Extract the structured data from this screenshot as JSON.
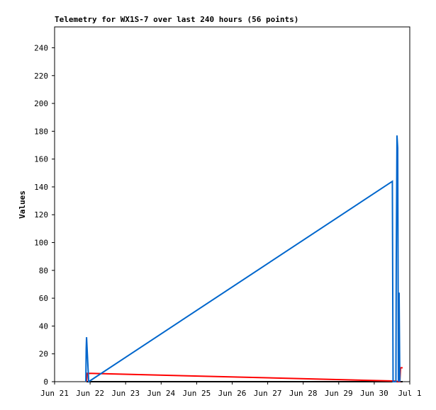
{
  "chart_data": {
    "type": "line",
    "title": "Telemetry for WX1S-7 over last 240 hours (56 points)",
    "y_label": "Values",
    "xlim": [
      0,
      10
    ],
    "ylim": [
      0,
      255
    ],
    "xticks": [
      {
        "value": 0,
        "label": "Jun 21"
      },
      {
        "value": 1,
        "label": "Jun 22"
      },
      {
        "value": 2,
        "label": "Jun 23"
      },
      {
        "value": 3,
        "label": "Jun 24"
      },
      {
        "value": 4,
        "label": "Jun 25"
      },
      {
        "value": 5,
        "label": "Jun 26"
      },
      {
        "value": 6,
        "label": "Jun 27"
      },
      {
        "value": 7,
        "label": "Jun 28"
      },
      {
        "value": 8,
        "label": "Jun 29"
      },
      {
        "value": 9,
        "label": "Jun 30"
      },
      {
        "value": 10,
        "label": "Jul 1"
      }
    ],
    "yticks": [
      0,
      20,
      40,
      60,
      80,
      100,
      120,
      140,
      160,
      180,
      200,
      220,
      240
    ],
    "grid": false,
    "series": [
      {
        "color": "#000000",
        "x": [
          0.9,
          9.8
        ],
        "values": [
          0,
          0
        ]
      },
      {
        "color": "#ff0000",
        "x": [
          0.9,
          0.92,
          9.55,
          9.72,
          9.74,
          9.8
        ],
        "values": [
          0,
          6,
          0.5,
          0,
          10,
          10
        ]
      },
      {
        "color": "#0066cc",
        "x": [
          0.88,
          0.89,
          0.9,
          0.96,
          9.51,
          9.53,
          9.61,
          9.62,
          9.64,
          9.66,
          9.68,
          9.7,
          9.72
        ],
        "values": [
          0,
          24,
          32,
          0,
          144,
          0,
          0,
          88,
          177,
          168,
          0,
          64,
          0
        ]
      }
    ]
  }
}
